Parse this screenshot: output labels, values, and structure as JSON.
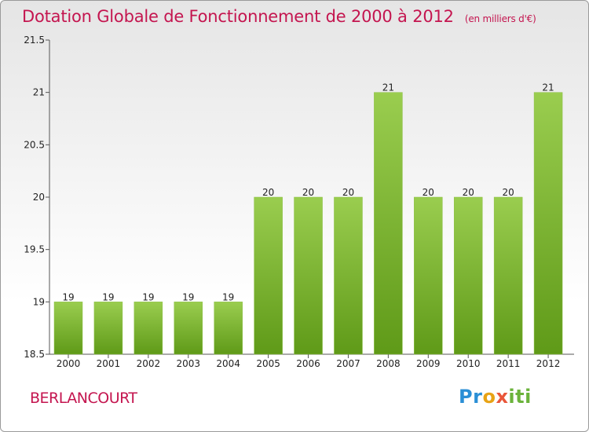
{
  "title": "Dotation Globale de Fonctionnement de 2000 à 2012",
  "unit_note": "(en milliers d'€)",
  "commune": "BERLANCOURT",
  "logo_text": "Proxiti",
  "colors": {
    "title": "#c4154f",
    "bar_top": "#9acd4f",
    "bar_bottom": "#5f9a18"
  },
  "chart_data": {
    "type": "bar",
    "title": "Dotation Globale de Fonctionnement de 2000 à 2012",
    "xlabel": "",
    "ylabel": "",
    "categories": [
      "2000",
      "2001",
      "2002",
      "2003",
      "2004",
      "2005",
      "2006",
      "2007",
      "2008",
      "2009",
      "2010",
      "2011",
      "2012"
    ],
    "values": [
      19,
      19,
      19,
      19,
      19,
      20,
      20,
      20,
      21,
      20,
      20,
      20,
      21
    ],
    "value_labels": [
      "19",
      "19",
      "19",
      "19",
      "19",
      "20",
      "20",
      "20",
      "21",
      "20",
      "20",
      "20",
      "21"
    ],
    "ylim": [
      18.5,
      21.5
    ],
    "yticks": [
      18.5,
      19,
      19.5,
      20,
      20.5,
      21,
      21.5
    ],
    "ytick_labels": [
      "18.5",
      "19",
      "19.5",
      "20",
      "20.5",
      "21",
      "21.5"
    ],
    "grid": false
  }
}
